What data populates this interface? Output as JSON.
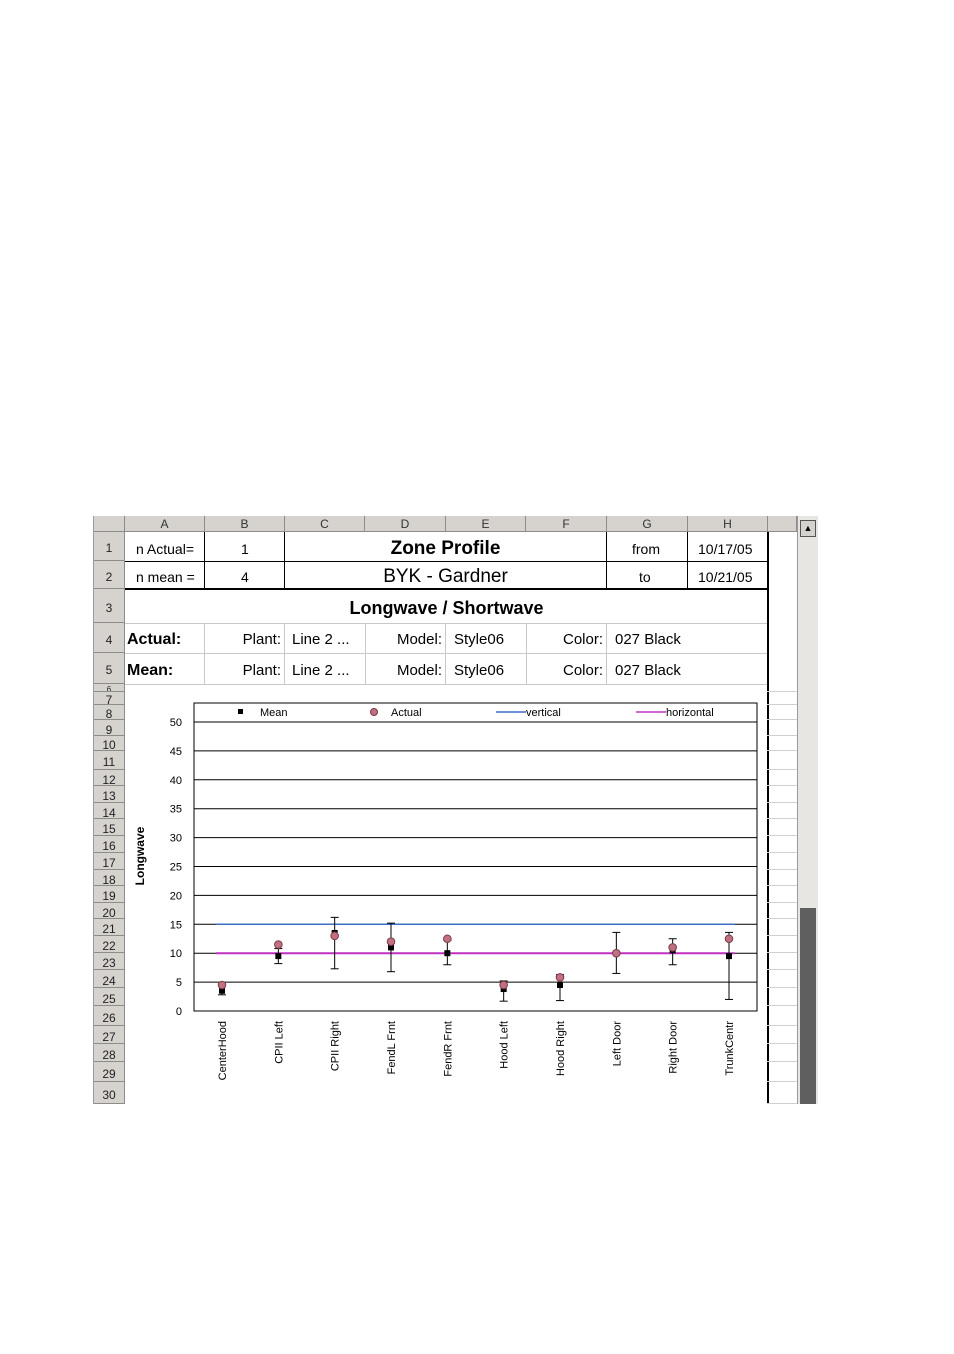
{
  "columns": [
    "A",
    "B",
    "C",
    "D",
    "E",
    "F",
    "G",
    "H"
  ],
  "rows": [
    "1",
    "2",
    "3",
    "4",
    "5",
    "6",
    "7",
    "8",
    "9",
    "10",
    "11",
    "12",
    "13",
    "14",
    "15",
    "16",
    "17",
    "18",
    "19",
    "20",
    "21",
    "22",
    "23",
    "24",
    "25",
    "26",
    "27",
    "28",
    "29",
    "30"
  ],
  "header": {
    "n_actual_label": "n Actual=",
    "n_actual_value": "1",
    "n_mean_label": "n mean =",
    "n_mean_value": "4",
    "title": "Zone Profile",
    "subtitle": "BYK - Gardner",
    "from_label": "from",
    "from_date": "10/17/05",
    "to_label": "to",
    "to_date": "10/21/05",
    "section_title": "Longwave / Shortwave"
  },
  "actual_row": {
    "label": "Actual:",
    "plant_label": "Plant:",
    "plant": "Line 2 ...",
    "model_label": "Model:",
    "model": "Style06",
    "color_label": "Color:",
    "color": "027 Black"
  },
  "mean_row": {
    "label": "Mean:",
    "plant_label": "Plant:",
    "plant": "Line 2 ...",
    "model_label": "Model:",
    "model": "Style06",
    "color_label": "Color:",
    "color": "027 Black"
  },
  "chart_data": {
    "type": "scatter",
    "title": "",
    "xlabel": "",
    "ylabel": "Longwave",
    "ylim": [
      0,
      50
    ],
    "yticks": [
      0,
      5,
      10,
      15,
      20,
      25,
      30,
      35,
      40,
      45,
      50
    ],
    "grid": true,
    "legend_placement": "top",
    "categories": [
      "CenterHood",
      "CPII Left",
      "CPII Right",
      "FendL Frnt",
      "FendR Frnt",
      "Hood Left",
      "Hood Right",
      "Left Door",
      "Right Door",
      "TrunkCentr"
    ],
    "series": [
      {
        "name": "Mean",
        "marker": "square",
        "color": "#000000",
        "values": [
          3.5,
          9.5,
          13.5,
          11,
          10,
          3.8,
          4.5,
          10,
          10.5,
          9.5
        ],
        "error_low": [
          2.8,
          8.2,
          7.3,
          6.8,
          8,
          1.7,
          1.8,
          6.5,
          8,
          2
        ],
        "error_high": [
          4.6,
          10.8,
          16.2,
          15.2,
          12.2,
          5.2,
          6.3,
          13.6,
          12.5,
          13.6
        ]
      },
      {
        "name": "Actual",
        "marker": "circle",
        "color": "#c07080",
        "values": [
          4.5,
          11.5,
          13,
          12,
          12.5,
          4.5,
          5.8,
          10,
          11,
          12.5
        ]
      },
      {
        "name": "vertical",
        "type": "line",
        "color": "#3a6fc4",
        "value": 15
      },
      {
        "name": "horizontal",
        "type": "line",
        "color": "#c030c0",
        "value": 10
      }
    ]
  }
}
